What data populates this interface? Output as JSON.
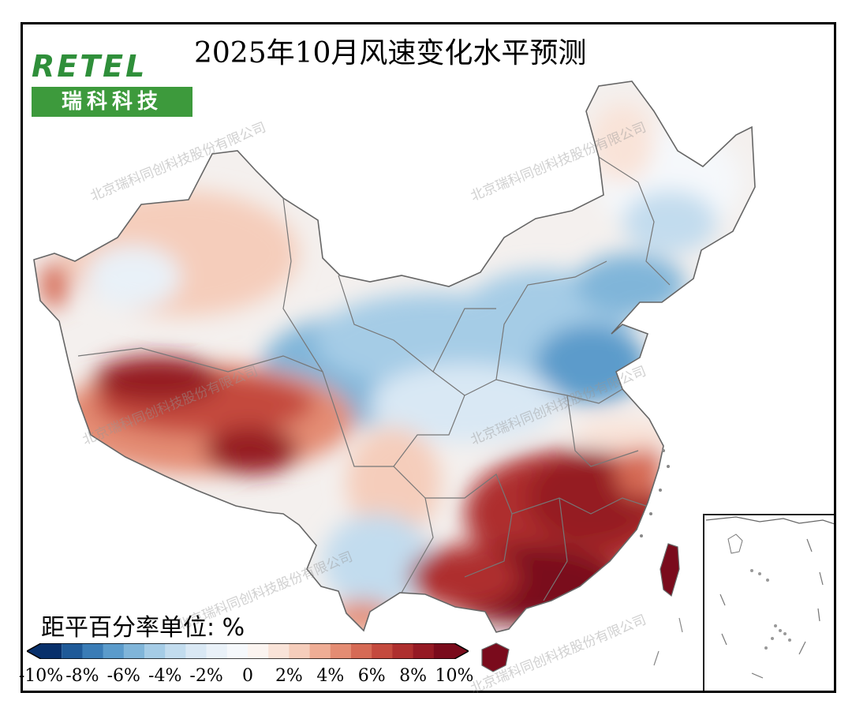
{
  "title": "2025年10月风速变化水平预测",
  "logo": {
    "wordmark": "RETEL",
    "name_cn": "瑞科科技"
  },
  "unit_label": "距平百分率单位: %",
  "watermark_text": "北京瑞科同创科技股份有限公司",
  "colorbar": {
    "min": -10,
    "max": 10,
    "step": 1,
    "tick_labels": [
      "-10%",
      "-8%",
      "-6%",
      "-4%",
      "-2%",
      "0",
      "2%",
      "4%",
      "6%",
      "8%",
      "10%"
    ],
    "colors": [
      "#08306b",
      "#1f5a98",
      "#3a7cb6",
      "#5b9bcb",
      "#80b5d9",
      "#a5cce6",
      "#c2dcee",
      "#d9e8f4",
      "#e9f1f8",
      "#f5f8fb",
      "#fbf4f0",
      "#f9e3d8",
      "#f5cdbb",
      "#efad95",
      "#e48c73",
      "#d66a55",
      "#c44a3e",
      "#ae2f2e",
      "#951a24",
      "#7a0b1c"
    ]
  },
  "map_regions": [
    {
      "region": "Tibetan Plateau (south-west)",
      "anomaly_pct": 9
    },
    {
      "region": "Southern China / Guangdong / Fujian / Hainan",
      "anomaly_pct": 10
    },
    {
      "region": "Jiangxi / Hunan / Zhejiang",
      "anomaly_pct": 8
    },
    {
      "region": "Xinjiang north",
      "anomaly_pct": 2
    },
    {
      "region": "Inner Mongolia west / Qinghai / Gansu",
      "anomaly_pct": -4
    },
    {
      "region": "Shandong / Hebei / Liaoning coast",
      "anomaly_pct": -6
    },
    {
      "region": "Heilongjiang / Jilin",
      "anomaly_pct": -2
    },
    {
      "region": "Yunnan / Sichuan",
      "anomaly_pct": -1
    },
    {
      "region": "Taiwan",
      "anomaly_pct": 9
    }
  ]
}
